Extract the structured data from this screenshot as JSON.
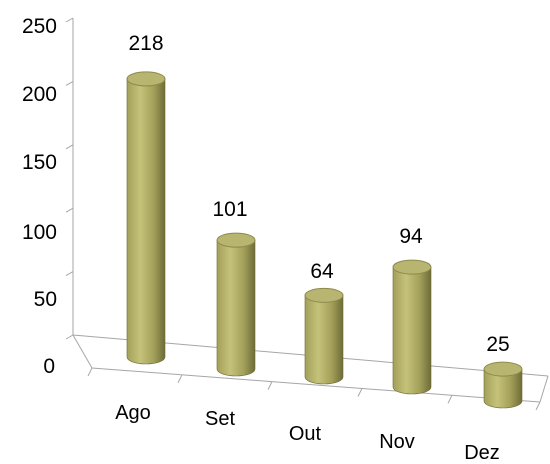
{
  "chart_data": {
    "type": "bar",
    "style": "3d-cylinder",
    "title": "",
    "xlabel": "",
    "ylabel": "",
    "categories": [
      "Ago",
      "Set",
      "Out",
      "Nov",
      "Dez"
    ],
    "values": [
      218,
      101,
      64,
      94,
      25
    ],
    "data_labels": [
      "218",
      "101",
      "64",
      "94",
      "25"
    ],
    "ylim": [
      0,
      250
    ],
    "yticks": [
      0,
      50,
      100,
      150,
      200,
      250
    ],
    "ytick_labels": [
      "0",
      "50",
      "100",
      "150",
      "200",
      "250"
    ],
    "grid": false,
    "legend": "none",
    "colors": {
      "bar_light": "#c5c27a",
      "bar_mid": "#a3a05a",
      "bar_dark": "#6e6c38",
      "bar_top": "#b8b570",
      "bar_top_edge": "#8d8a4c",
      "axis": "#a6a6a6"
    }
  }
}
